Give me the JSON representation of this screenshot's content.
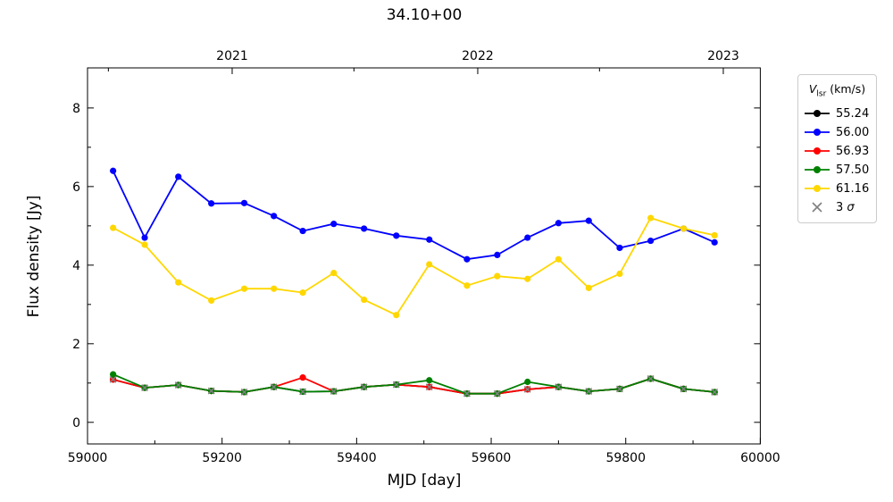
{
  "chart_data": {
    "type": "line",
    "title": "34.10+00",
    "xlabel": "MJD [day]",
    "ylabel": "Flux density [Jy]",
    "xlim": [
      59000,
      60000
    ],
    "ylim": [
      -0.55,
      9.02
    ],
    "grid": false,
    "x_ticks_major": [
      59000,
      59200,
      59400,
      59600,
      59800,
      60000
    ],
    "x_ticks_minor": [
      59100,
      59300,
      59500,
      59700,
      59900
    ],
    "y_ticks_major": [
      0,
      2,
      4,
      6,
      8
    ],
    "y_ticks_minor": [
      1,
      3,
      5,
      7
    ],
    "top_axis_years": [
      {
        "mjd": 59215,
        "label": "2021"
      },
      {
        "mjd": 59580,
        "label": "2022"
      },
      {
        "mjd": 59945,
        "label": "2023"
      }
    ],
    "top_axis_minor": [
      59031,
      59396,
      59761
    ],
    "x": [
      59038,
      59085,
      59135,
      59184,
      59233,
      59277,
      59320,
      59366,
      59411,
      59459,
      59508,
      59564,
      59609,
      59654,
      59700,
      59745,
      59791,
      59837,
      59886,
      59932
    ],
    "series": [
      {
        "name": "55.24",
        "color": "#000000",
        "values": [
          1.09,
          0.88,
          0.95,
          0.8,
          0.77,
          0.9,
          0.78,
          0.79,
          0.9,
          0.96,
          0.9,
          0.73,
          0.73,
          0.84,
          0.9,
          0.79,
          0.85,
          1.11,
          0.85,
          0.77
        ]
      },
      {
        "name": "56.00",
        "color": "#0000ff",
        "values": [
          6.4,
          4.7,
          6.25,
          5.57,
          5.58,
          5.25,
          4.87,
          5.05,
          4.93,
          4.75,
          4.65,
          4.15,
          4.26,
          4.7,
          5.07,
          5.13,
          4.44,
          4.62,
          4.93,
          4.58
        ]
      },
      {
        "name": "56.93",
        "color": "#ff0000",
        "values": [
          1.09,
          0.88,
          0.95,
          0.8,
          0.77,
          0.9,
          1.14,
          0.79,
          0.9,
          0.96,
          0.9,
          0.73,
          0.73,
          0.84,
          0.9,
          0.79,
          0.85,
          1.11,
          0.85,
          0.77
        ]
      },
      {
        "name": "57.50",
        "color": "#008000",
        "values": [
          1.22,
          0.88,
          0.95,
          0.8,
          0.77,
          0.9,
          0.78,
          0.79,
          0.9,
          0.96,
          1.07,
          0.73,
          0.73,
          1.03,
          0.9,
          0.79,
          0.85,
          1.11,
          0.85,
          0.77
        ]
      },
      {
        "name": "61.16",
        "color": "#ffd700",
        "values": [
          4.95,
          4.52,
          3.56,
          3.1,
          3.4,
          3.4,
          3.3,
          3.8,
          3.12,
          2.73,
          4.02,
          3.48,
          3.72,
          3.65,
          4.15,
          3.42,
          3.78,
          5.2,
          4.93,
          4.76
        ]
      }
    ],
    "sigma3": {
      "label_prefix": "3 ",
      "label_symbol": "σ",
      "color": "#808080",
      "values": [
        1.09,
        0.88,
        0.95,
        0.8,
        0.77,
        0.9,
        0.78,
        0.79,
        0.9,
        0.96,
        0.9,
        0.73,
        0.73,
        0.84,
        0.9,
        0.79,
        0.85,
        1.11,
        0.85,
        0.77
      ]
    },
    "legend": {
      "title_symbol": "V",
      "title_sub": "lsr",
      "title_unit": " (km/s)",
      "position": "outside-right"
    }
  }
}
